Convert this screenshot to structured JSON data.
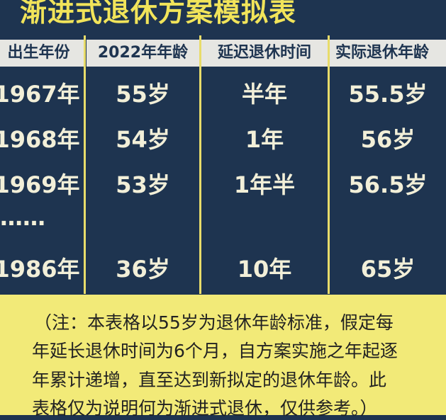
{
  "title": "渐进式退休方案模拟表",
  "table": {
    "headers": [
      "出生年份",
      "2022年年龄",
      "延迟退休时间",
      "实际退休年龄"
    ],
    "rows": [
      [
        "1967年",
        "55岁",
        "半年",
        "55.5岁"
      ],
      [
        "1968年",
        "54岁",
        "1年",
        "56岁"
      ],
      [
        "1969年",
        "53岁",
        "1年半",
        "56.5岁"
      ],
      [
        "……",
        "",
        "",
        ""
      ],
      [
        "1986年",
        "36岁",
        "10年",
        "65岁"
      ]
    ]
  },
  "note": {
    "lines": [
      "（注：本表格以55岁为退休年龄标准，假定每",
      "年延长退休时间为6个月，自方案实施之年起逐",
      "年累计递增，直至达到新拟定的退休年龄。此",
      "表格仅为说明何为渐进式退休，仅供参考。）"
    ]
  },
  "colors": {
    "background": "#1e3450",
    "accent": "#f1e45a",
    "note_bg": "#f2ea78"
  }
}
